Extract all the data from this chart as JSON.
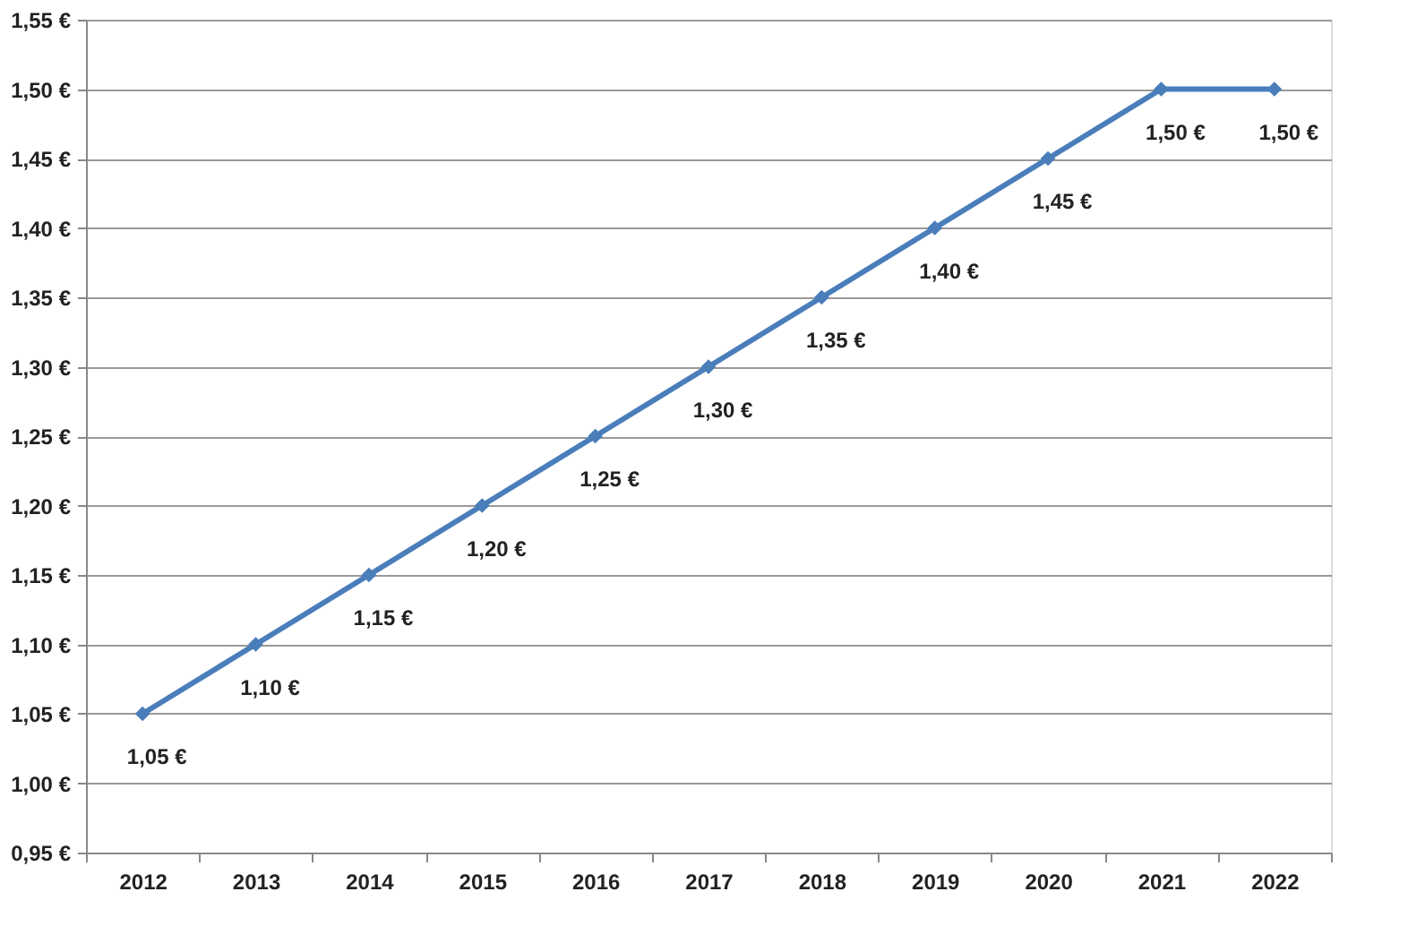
{
  "chart_data": {
    "type": "line",
    "categories": [
      "2012",
      "2013",
      "2014",
      "2015",
      "2016",
      "2017",
      "2018",
      "2019",
      "2020",
      "2021",
      "2022"
    ],
    "series": [
      {
        "color": "#4a7ebb",
        "values": [
          1.05,
          1.1,
          1.15,
          1.2,
          1.25,
          1.3,
          1.35,
          1.4,
          1.45,
          1.5,
          1.5
        ],
        "value_labels": [
          "1,05 €",
          "1,10 €",
          "1,15 €",
          "1,20 €",
          "1,25 €",
          "1,30 €",
          "1,35 €",
          "1,40 €",
          "1,45 €",
          "1,50 €",
          "1,50 €"
        ]
      }
    ],
    "ylim": [
      0.95,
      1.55
    ],
    "yticks": [
      {
        "value": 0.95,
        "label": "0,95 €"
      },
      {
        "value": 1.0,
        "label": "1,00 €"
      },
      {
        "value": 1.05,
        "label": "1,05 €"
      },
      {
        "value": 1.1,
        "label": "1,10 €"
      },
      {
        "value": 1.15,
        "label": "1,15 €"
      },
      {
        "value": 1.2,
        "label": "1,20 €"
      },
      {
        "value": 1.25,
        "label": "1,25 €"
      },
      {
        "value": 1.3,
        "label": "1,30 €"
      },
      {
        "value": 1.35,
        "label": "1,35 €"
      },
      {
        "value": 1.4,
        "label": "1,40 €"
      },
      {
        "value": 1.45,
        "label": "1,45 €"
      },
      {
        "value": 1.5,
        "label": "1,50 €"
      },
      {
        "value": 1.55,
        "label": "1,55 €"
      }
    ],
    "grid": "y",
    "marker": "diamond",
    "line_style": "solid"
  }
}
